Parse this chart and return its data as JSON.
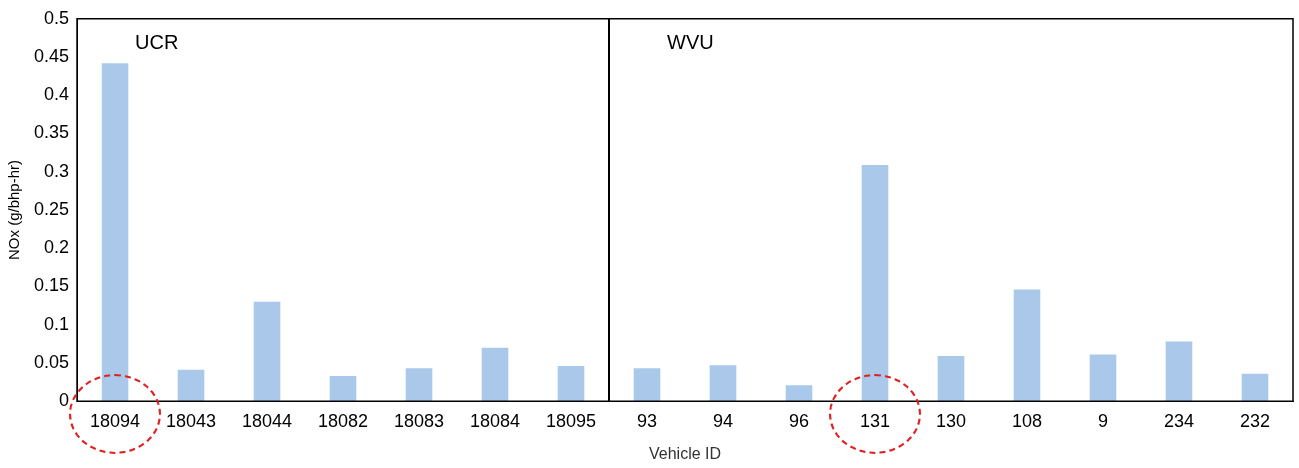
{
  "chart_data": {
    "type": "bar",
    "xlabel": "Vehicle ID",
    "ylabel": "NOx (g/bhp-hr)",
    "categories": [
      "18094",
      "18043",
      "18044",
      "18082",
      "18083",
      "18084",
      "18095",
      "93",
      "94",
      "96",
      "131",
      "130",
      "108",
      "9",
      "234",
      "232"
    ],
    "values": [
      0.442,
      0.041,
      0.13,
      0.033,
      0.043,
      0.07,
      0.046,
      0.043,
      0.047,
      0.021,
      0.309,
      0.059,
      0.146,
      0.061,
      0.078,
      0.036
    ],
    "color": "#a9c8ea",
    "ylim": [
      0,
      0.5
    ],
    "yticks": [
      0,
      0.05,
      0.1,
      0.15,
      0.2,
      0.25,
      0.3,
      0.35,
      0.4,
      0.45,
      0.5
    ],
    "annotations": [
      "UCR",
      "WVU"
    ],
    "grid": false,
    "legend": false
  }
}
